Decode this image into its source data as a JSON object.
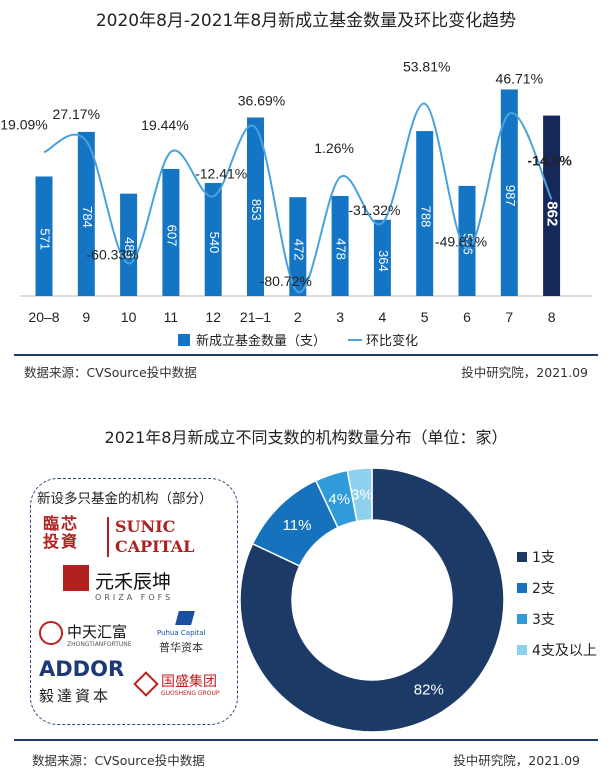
{
  "chart1": {
    "title": "2020年8月-2021年8月新成立基金数量及环比变化趋势",
    "chart_data": {
      "type": "bar",
      "categories": [
        "20–8",
        "9",
        "10",
        "11",
        "12",
        "21–1",
        "2",
        "3",
        "4",
        "5",
        "6",
        "7",
        "8"
      ],
      "series": [
        {
          "name": "新成立基金数量（支）",
          "type": "bar",
          "values": [
            571,
            784,
            489,
            607,
            540,
            853,
            472,
            478,
            364,
            788,
            526,
            987,
            862
          ]
        },
        {
          "name": "环比变化",
          "type": "line",
          "values": [
            19.09,
            27.17,
            -60.33,
            19.44,
            -12.41,
            36.69,
            -80.72,
            1.26,
            -31.32,
            53.81,
            -49.81,
            46.71,
            -14.5
          ]
        }
      ],
      "pct_labels": [
        "19.09%",
        "27.17%",
        "-60.33%",
        "19.44%",
        "-12.41%",
        "36.69%",
        "-80.72%",
        "1.26%",
        "-31.32%",
        "53.81%",
        "-49.81%",
        "46.71%",
        "-14.5%"
      ],
      "legend_position": "bottom",
      "colors": {
        "bar": "#1475c4",
        "bar_highlight": "#14285a",
        "line": "#4aa3dc"
      }
    },
    "source_left": "数据来源：CVSource投中数据",
    "source_right": "投中研究院，2021.09"
  },
  "chart2": {
    "title": "2021年8月新成立不同支数的机构数量分布（单位：家）",
    "chart_data": {
      "type": "pie",
      "labels": [
        "1支",
        "2支",
        "3支",
        "4支及以上"
      ],
      "values": [
        82,
        11,
        4,
        3
      ],
      "value_labels": [
        "82%",
        "11%",
        "4%",
        "3%"
      ],
      "legend_position": "right",
      "colors": [
        "#1b3a66",
        "#1672bd",
        "#2f9bd8",
        "#8fd0ee"
      ]
    },
    "logo_box": {
      "title": "新设多只基金的机构（部分）",
      "logos": [
        "臨芯 投資",
        "SUNIC",
        "CAPITAL",
        "元禾辰坤",
        "ORIZA FOFS",
        "中天汇富",
        "ZHONGTIANFORTUNE",
        "Puhua Capital",
        "普华资本",
        "ADDOR",
        "毅達資本",
        "国盛集团",
        "GUOSHENG GROUP"
      ]
    },
    "source_left": "数据来源：CVSource投中数据",
    "source_right": "投中研究院，2021.09"
  }
}
